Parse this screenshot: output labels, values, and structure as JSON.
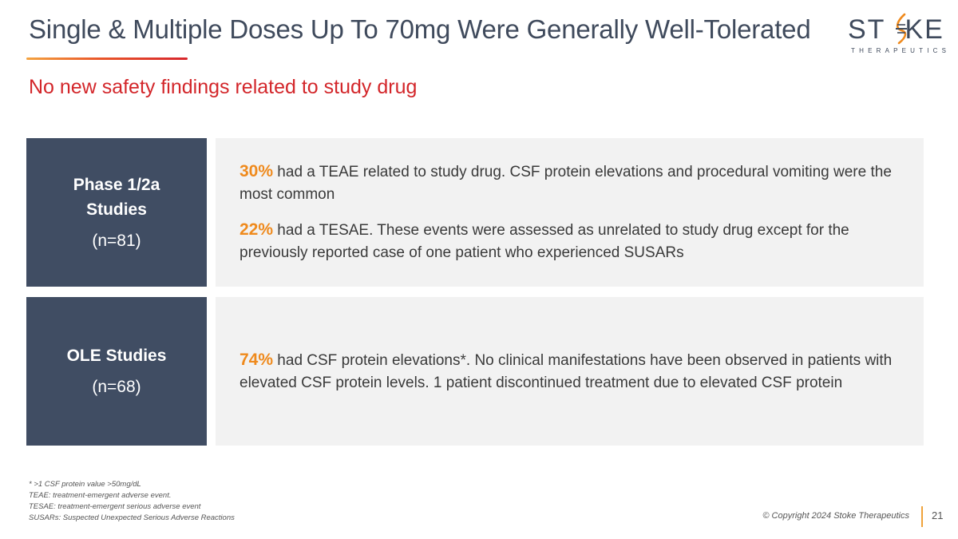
{
  "header": {
    "title": "Single & Multiple Doses Up To 70mg Were Generally Well-Tolerated",
    "subtitle": "No new safety findings related to study drug"
  },
  "logo": {
    "word_left": "ST",
    "word_right": "KE",
    "tagline": "THERAPEUTICS",
    "colors": {
      "text": "#3f4a5c",
      "accent": "#ef8a1d"
    }
  },
  "rows": [
    {
      "label": "Phase 1/2a Studies",
      "n": "(n=81)",
      "items": [
        {
          "pct": "30%",
          "text": " had a TEAE related to study drug. CSF protein elevations and procedural vomiting were the most common"
        },
        {
          "pct": "22%",
          "text": " had a TESAE. These events were assessed as unrelated to study drug except for the previously reported case of one patient who experienced SUSARs"
        }
      ]
    },
    {
      "label": "OLE Studies",
      "n": "(n=68)",
      "items": [
        {
          "pct": "74%",
          "text": " had CSF protein elevations*. No clinical manifestations have been observed in patients with elevated CSF protein levels. 1 patient discontinued treatment due to elevated CSF protein"
        }
      ]
    }
  ],
  "footnotes": [
    "* >1 CSF protein value >50mg/dL",
    "TEAE: treatment-emergent adverse event.",
    "TESAE: treatment-emergent serious adverse event",
    "SUSARs: Suspected Unexpected Serious Adverse Reactions"
  ],
  "footer": {
    "copyright": "© Copyright 2024 Stoke Therapeutics",
    "page_number": "21"
  },
  "colors": {
    "label_bg": "#404d63",
    "body_bg": "#f2f2f2",
    "highlight": "#ef8a1d",
    "subtitle": "#d3262a"
  }
}
